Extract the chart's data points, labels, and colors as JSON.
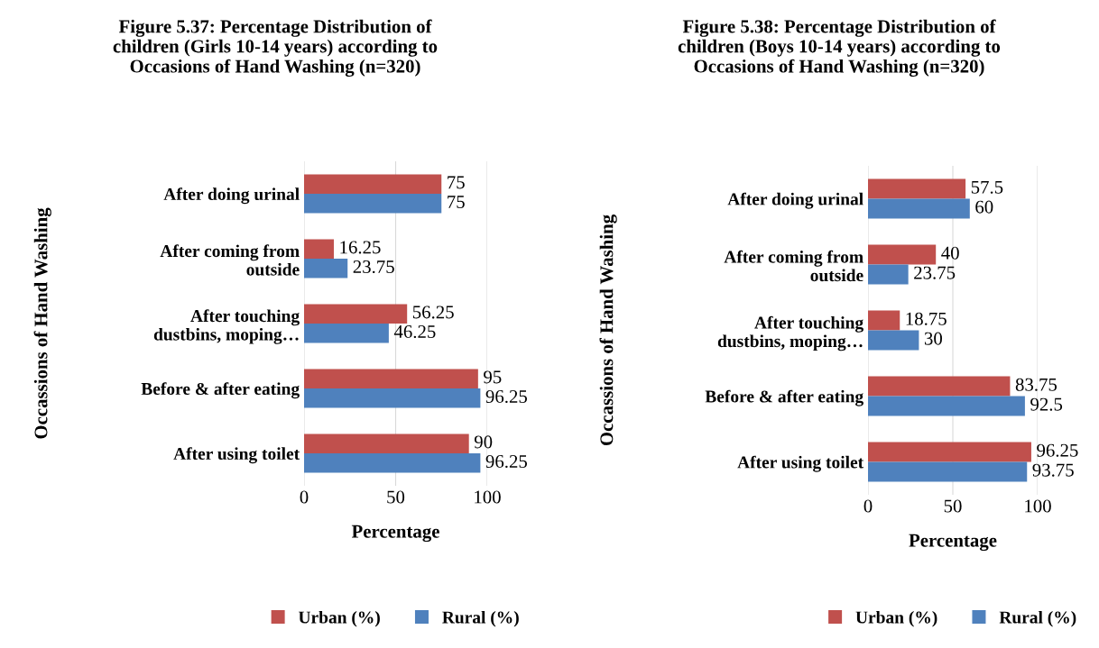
{
  "chart_data": [
    {
      "type": "bar",
      "orientation": "horizontal",
      "title": "Figure 5.37: Percentage Distribution of\nchildren (Girls 10-14 years) according to\nOccasions of Hand Washing (n=320)",
      "xlabel": "Percentage",
      "ylabel": "Occassions of Hand Washing",
      "categories": [
        "After doing urinal",
        "After coming from\noutside",
        "After touching\ndustbins, moping…",
        "Before & after eating",
        "After using toilet"
      ],
      "series": [
        {
          "name": "Urban (%)",
          "color": "#c0504d",
          "values": [
            75,
            16.25,
            56.25,
            95,
            90
          ]
        },
        {
          "name": "Rural (%)",
          "color": "#4f81bd",
          "values": [
            75,
            23.75,
            46.25,
            96.25,
            96.25
          ]
        }
      ],
      "xlim": [
        0,
        100
      ],
      "xticks": [
        0,
        50,
        100
      ],
      "grid": "x",
      "legend": "bottom",
      "data_labels": true
    },
    {
      "type": "bar",
      "orientation": "horizontal",
      "title": "Figure 5.38: Percentage Distribution of\nchildren (Boys 10-14 years) according to\nOccasions of Hand Washing (n=320)",
      "xlabel": "Percentage",
      "ylabel": "Occassions of Hand Washing",
      "categories": [
        "After doing urinal",
        "After coming from\noutside",
        "After touching\ndustbins, moping…",
        "Before & after eating",
        "After using toilet"
      ],
      "series": [
        {
          "name": "Urban (%)",
          "color": "#c0504d",
          "values": [
            57.5,
            40,
            18.75,
            83.75,
            96.25
          ]
        },
        {
          "name": "Rural (%)",
          "color": "#4f81bd",
          "values": [
            60,
            23.75,
            30,
            92.5,
            93.75
          ]
        }
      ],
      "xlim": [
        0,
        100
      ],
      "xticks": [
        0,
        50,
        100
      ],
      "grid": "x",
      "legend": "bottom",
      "data_labels": true
    }
  ]
}
